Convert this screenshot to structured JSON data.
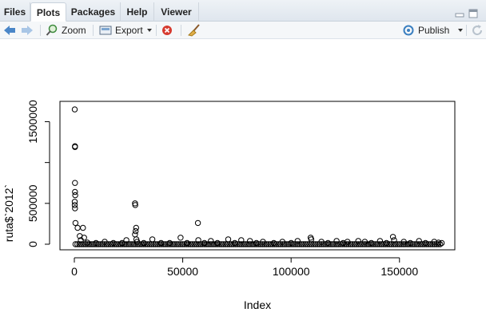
{
  "tabs": [
    {
      "label": "Files",
      "active": false
    },
    {
      "label": "Plots",
      "active": true
    },
    {
      "label": "Packages",
      "active": false
    },
    {
      "label": "Help",
      "active": false
    },
    {
      "label": "Viewer",
      "active": false
    }
  ],
  "toolbar": {
    "zoom_label": "Zoom",
    "export_label": "Export",
    "publish_label": "Publish"
  },
  "icons": [
    "back-arrow-icon",
    "forward-arrow-icon",
    "zoom-icon",
    "export-icon",
    "remove-plot-icon",
    "broom-icon",
    "publish-icon",
    "refresh-icon",
    "minimize-icon",
    "maximize-icon"
  ],
  "chart_data": {
    "type": "scatter",
    "xlabel": "Index",
    "ylabel": "ruta$`2012`",
    "xlim": [
      0,
      170000
    ],
    "ylim": [
      0,
      1700000
    ],
    "x_ticks": [
      0,
      50000,
      100000,
      150000
    ],
    "x_tick_labels": [
      "0",
      "50000",
      "100000",
      "150000"
    ],
    "y_ticks": [
      0,
      500000,
      1000000,
      1500000
    ],
    "y_tick_labels": [
      "0",
      "500000",
      "",
      "1500000"
    ],
    "grid": false,
    "marker": "open-circle",
    "series": [
      {
        "x": [
          200,
          300,
          300,
          300,
          300,
          400,
          200,
          200,
          300,
          500,
          1500,
          2500,
          4000,
          4500,
          3000,
          28000,
          28100,
          28500,
          28300,
          28000,
          28600,
          29000,
          57000,
          57200,
          49000,
          14000,
          24000,
          36000,
          63000,
          71000,
          77000,
          81000,
          87000,
          96000,
          103000,
          109000,
          109300,
          114000,
          121000,
          126000,
          131000,
          134000,
          141000,
          147000,
          147500,
          152000,
          159000,
          166000,
          168000,
          6000,
          10000,
          18000,
          22000,
          32000,
          40000,
          44000,
          52000,
          60000,
          66000,
          74000,
          84000,
          92000,
          100000,
          117000,
          124000,
          137000,
          144000,
          155000,
          162000,
          169500
        ],
        "y": [
          1650000,
          1200000,
          1190000,
          750000,
          640000,
          600000,
          520000,
          480000,
          440000,
          260000,
          200000,
          100000,
          200000,
          80000,
          50000,
          500000,
          480000,
          200000,
          160000,
          120000,
          60000,
          30000,
          260000,
          50000,
          80000,
          30000,
          50000,
          60000,
          40000,
          60000,
          50000,
          40000,
          30000,
          30000,
          40000,
          80000,
          60000,
          30000,
          40000,
          30000,
          40000,
          30000,
          40000,
          90000,
          50000,
          30000,
          40000,
          30000,
          20000,
          20000,
          15000,
          15000,
          15000,
          15000,
          15000,
          15000,
          15000,
          15000,
          15000,
          15000,
          15000,
          15000,
          15000,
          15000,
          15000,
          15000,
          15000,
          15000,
          15000,
          15000
        ]
      }
    ]
  }
}
